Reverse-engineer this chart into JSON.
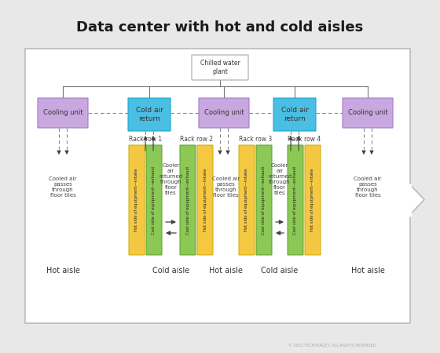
{
  "title": "Data center with hot and cold aisles",
  "bg_outer": "#e8e8e8",
  "bg_inner": "#ffffff",
  "border_color": "#bbbbbb",
  "cooling_unit_color": "#c9a8e0",
  "cold_air_return_color": "#4bbee3",
  "hot_rack_color": "#f5c842",
  "cold_rack_color": "#8cc856",
  "chilled_water_box_color": "#ffffff",
  "chilled_water_text": "Chilled water\nplant",
  "cooling_unit_text": "Cooling unit",
  "cold_air_return_text": "Cold air\nreturn",
  "hot_aisle_label": "Hot aisle",
  "cold_aisle_label": "Cold aisle",
  "rack_row_labels": [
    "Rack row 1",
    "Rack row 2",
    "Rack row 3",
    "Rack row 4"
  ],
  "hot_rack_text_a": "Hot side of equipment—intake",
  "cold_rack_text_a": "Cool side of equipment—exhaust",
  "hot_rack_text_b": "Cool side of equipment—exhaust",
  "cold_rack_text_b": "Hot side of equipment—intake",
  "cooled_air_text": "Cooled air\npasses\nthrough\nfloor tiles",
  "cooler_air_text": "Cooler\nair\nreturned\nthrough\nfloor\ntiles",
  "arrow_color": "#444444",
  "line_color": "#777777",
  "dashed_color": "#888888",
  "watermark": "© 2022 TECHTARGET. ALL RIGHTS RESERVED."
}
